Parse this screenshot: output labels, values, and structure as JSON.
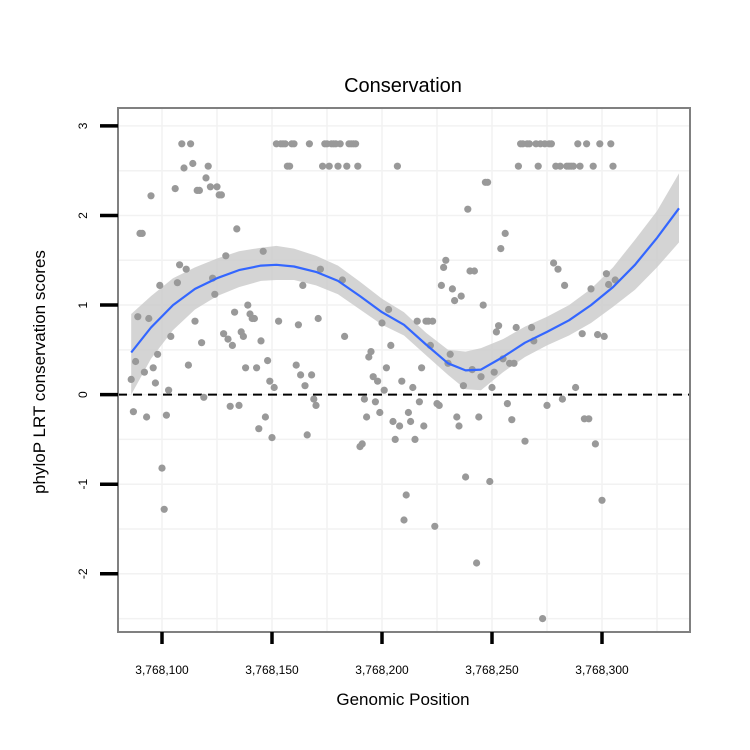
{
  "chart_data": {
    "type": "scatter",
    "title": "Conservation",
    "xlabel": "Genomic Position",
    "ylabel": "phyloP LRT conservation scores",
    "xlim": [
      3768080,
      3768340
    ],
    "ylim": [
      -2.65,
      3.2
    ],
    "x_ticks": [
      3768100,
      3768150,
      3768200,
      3768250,
      3768300
    ],
    "x_tick_labels": [
      "3,768,100",
      "3,768,150",
      "3,768,200",
      "3,768,250",
      "3,768,300"
    ],
    "y_ticks": [
      3,
      2,
      1,
      0,
      -1,
      -2
    ],
    "y_tick_labels": [
      "3",
      "2",
      "1",
      "0",
      "-1",
      "-2"
    ],
    "reference_line": {
      "y": 0,
      "style": "dashed"
    },
    "colors": {
      "points": "#999999",
      "smooth_line": "#3366ff",
      "confidence_band": "#cccccc",
      "panel_border": "#808080",
      "grid": "#f2f2f2"
    },
    "series": [
      {
        "name": "conservation scores",
        "kind": "points",
        "points": [
          [
            3768086,
            0.17
          ],
          [
            3768087,
            -0.19
          ],
          [
            3768088,
            0.37
          ],
          [
            3768089,
            0.87
          ],
          [
            3768090,
            1.8
          ],
          [
            3768091,
            1.8
          ],
          [
            3768092,
            0.25
          ],
          [
            3768093,
            -0.25
          ],
          [
            3768094,
            0.85
          ],
          [
            3768095,
            2.22
          ],
          [
            3768096,
            0.3
          ],
          [
            3768097,
            0.13
          ],
          [
            3768098,
            0.45
          ],
          [
            3768099,
            1.22
          ],
          [
            3768100,
            -0.82
          ],
          [
            3768101,
            -1.28
          ],
          [
            3768102,
            -0.23
          ],
          [
            3768103,
            0.05
          ],
          [
            3768104,
            0.65
          ],
          [
            3768106,
            2.3
          ],
          [
            3768107,
            1.25
          ],
          [
            3768108,
            1.45
          ],
          [
            3768109,
            2.8
          ],
          [
            3768110,
            2.53
          ],
          [
            3768111,
            1.4
          ],
          [
            3768112,
            0.33
          ],
          [
            3768113,
            2.8
          ],
          [
            3768114,
            2.58
          ],
          [
            3768115,
            0.82
          ],
          [
            3768116,
            2.28
          ],
          [
            3768117,
            2.28
          ],
          [
            3768118,
            0.58
          ],
          [
            3768119,
            -0.03
          ],
          [
            3768120,
            2.42
          ],
          [
            3768121,
            2.55
          ],
          [
            3768122,
            2.32
          ],
          [
            3768123,
            1.3
          ],
          [
            3768124,
            1.12
          ],
          [
            3768125,
            2.32
          ],
          [
            3768126,
            2.23
          ],
          [
            3768127,
            2.23
          ],
          [
            3768128,
            0.68
          ],
          [
            3768129,
            1.55
          ],
          [
            3768130,
            0.62
          ],
          [
            3768131,
            -0.13
          ],
          [
            3768132,
            0.55
          ],
          [
            3768133,
            0.92
          ],
          [
            3768134,
            1.85
          ],
          [
            3768135,
            -0.12
          ],
          [
            3768136,
            0.7
          ],
          [
            3768137,
            0.65
          ],
          [
            3768138,
            0.3
          ],
          [
            3768139,
            1.0
          ],
          [
            3768140,
            0.9
          ],
          [
            3768141,
            0.85
          ],
          [
            3768142,
            0.85
          ],
          [
            3768143,
            0.3
          ],
          [
            3768144,
            -0.38
          ],
          [
            3768145,
            0.6
          ],
          [
            3768146,
            1.6
          ],
          [
            3768147,
            -0.25
          ],
          [
            3768148,
            0.38
          ],
          [
            3768149,
            0.15
          ],
          [
            3768150,
            -0.48
          ],
          [
            3768151,
            0.08
          ],
          [
            3768152,
            2.8
          ],
          [
            3768153,
            0.82
          ],
          [
            3768154,
            2.8
          ],
          [
            3768155,
            2.8
          ],
          [
            3768156,
            2.8
          ],
          [
            3768157,
            2.55
          ],
          [
            3768158,
            2.55
          ],
          [
            3768159,
            2.8
          ],
          [
            3768160,
            2.8
          ],
          [
            3768161,
            0.33
          ],
          [
            3768162,
            0.78
          ],
          [
            3768163,
            0.22
          ],
          [
            3768164,
            1.22
          ],
          [
            3768165,
            0.1
          ],
          [
            3768166,
            -0.45
          ],
          [
            3768167,
            2.8
          ],
          [
            3768168,
            0.22
          ],
          [
            3768169,
            -0.05
          ],
          [
            3768170,
            -0.12
          ],
          [
            3768171,
            0.85
          ],
          [
            3768172,
            1.4
          ],
          [
            3768173,
            2.55
          ],
          [
            3768174,
            2.8
          ],
          [
            3768175,
            2.8
          ],
          [
            3768176,
            2.55
          ],
          [
            3768177,
            2.8
          ],
          [
            3768178,
            2.8
          ],
          [
            3768179,
            2.8
          ],
          [
            3768180,
            2.55
          ],
          [
            3768181,
            2.8
          ],
          [
            3768182,
            1.28
          ],
          [
            3768183,
            0.65
          ],
          [
            3768184,
            2.55
          ],
          [
            3768185,
            2.8
          ],
          [
            3768186,
            2.8
          ],
          [
            3768187,
            2.8
          ],
          [
            3768188,
            2.8
          ],
          [
            3768189,
            2.55
          ],
          [
            3768190,
            -0.58
          ],
          [
            3768191,
            -0.55
          ],
          [
            3768192,
            -0.05
          ],
          [
            3768193,
            -0.25
          ],
          [
            3768194,
            0.42
          ],
          [
            3768195,
            0.48
          ],
          [
            3768196,
            0.2
          ],
          [
            3768197,
            -0.08
          ],
          [
            3768198,
            0.15
          ],
          [
            3768199,
            -0.2
          ],
          [
            3768200,
            0.8
          ],
          [
            3768201,
            0.05
          ],
          [
            3768202,
            0.3
          ],
          [
            3768203,
            0.95
          ],
          [
            3768204,
            0.55
          ],
          [
            3768205,
            -0.3
          ],
          [
            3768206,
            -0.5
          ],
          [
            3768207,
            2.55
          ],
          [
            3768208,
            -0.35
          ],
          [
            3768209,
            0.15
          ],
          [
            3768210,
            -1.4
          ],
          [
            3768211,
            -1.12
          ],
          [
            3768212,
            -0.2
          ],
          [
            3768213,
            -0.3
          ],
          [
            3768214,
            0.08
          ],
          [
            3768215,
            -0.5
          ],
          [
            3768216,
            0.82
          ],
          [
            3768217,
            -0.08
          ],
          [
            3768218,
            0.3
          ],
          [
            3768219,
            -0.35
          ],
          [
            3768220,
            0.82
          ],
          [
            3768221,
            0.82
          ],
          [
            3768222,
            0.55
          ],
          [
            3768223,
            0.82
          ],
          [
            3768224,
            -1.47
          ],
          [
            3768225,
            -0.1
          ],
          [
            3768226,
            -0.12
          ],
          [
            3768227,
            1.22
          ],
          [
            3768228,
            1.42
          ],
          [
            3768229,
            1.5
          ],
          [
            3768230,
            0.35
          ],
          [
            3768231,
            0.45
          ],
          [
            3768232,
            1.18
          ],
          [
            3768233,
            1.05
          ],
          [
            3768234,
            -0.25
          ],
          [
            3768235,
            -0.35
          ],
          [
            3768236,
            1.1
          ],
          [
            3768237,
            0.1
          ],
          [
            3768238,
            -0.92
          ],
          [
            3768239,
            2.07
          ],
          [
            3768240,
            1.38
          ],
          [
            3768241,
            0.28
          ],
          [
            3768242,
            1.38
          ],
          [
            3768243,
            -1.88
          ],
          [
            3768244,
            -0.25
          ],
          [
            3768245,
            0.2
          ],
          [
            3768246,
            1.0
          ],
          [
            3768247,
            2.37
          ],
          [
            3768248,
            2.37
          ],
          [
            3768249,
            -0.97
          ],
          [
            3768250,
            0.08
          ],
          [
            3768251,
            0.25
          ],
          [
            3768252,
            0.7
          ],
          [
            3768253,
            0.77
          ],
          [
            3768254,
            1.63
          ],
          [
            3768255,
            0.4
          ],
          [
            3768256,
            1.8
          ],
          [
            3768257,
            -0.1
          ],
          [
            3768258,
            0.35
          ],
          [
            3768259,
            -0.28
          ],
          [
            3768260,
            0.35
          ],
          [
            3768261,
            0.75
          ],
          [
            3768262,
            2.55
          ],
          [
            3768263,
            2.8
          ],
          [
            3768264,
            2.8
          ],
          [
            3768265,
            -0.52
          ],
          [
            3768266,
            2.8
          ],
          [
            3768267,
            2.8
          ],
          [
            3768268,
            0.75
          ],
          [
            3768269,
            0.6
          ],
          [
            3768270,
            2.8
          ],
          [
            3768271,
            2.55
          ],
          [
            3768272,
            2.8
          ],
          [
            3768273,
            -2.5
          ],
          [
            3768274,
            2.8
          ],
          [
            3768275,
            -0.12
          ],
          [
            3768276,
            2.8
          ],
          [
            3768277,
            2.8
          ],
          [
            3768278,
            1.47
          ],
          [
            3768279,
            2.55
          ],
          [
            3768280,
            1.4
          ],
          [
            3768281,
            2.55
          ],
          [
            3768282,
            -0.05
          ],
          [
            3768283,
            1.22
          ],
          [
            3768284,
            2.55
          ],
          [
            3768285,
            2.55
          ],
          [
            3768286,
            2.55
          ],
          [
            3768287,
            2.55
          ],
          [
            3768288,
            0.08
          ],
          [
            3768289,
            2.8
          ],
          [
            3768290,
            2.55
          ],
          [
            3768291,
            0.68
          ],
          [
            3768292,
            -0.27
          ],
          [
            3768293,
            2.8
          ],
          [
            3768294,
            -0.27
          ],
          [
            3768295,
            1.18
          ],
          [
            3768296,
            2.55
          ],
          [
            3768297,
            -0.55
          ],
          [
            3768298,
            0.67
          ],
          [
            3768299,
            2.8
          ],
          [
            3768300,
            -1.18
          ],
          [
            3768301,
            0.65
          ],
          [
            3768302,
            1.35
          ],
          [
            3768303,
            1.23
          ],
          [
            3768304,
            2.8
          ],
          [
            3768305,
            2.55
          ],
          [
            3768306,
            1.28
          ]
        ]
      },
      {
        "name": "loess fit",
        "kind": "smooth",
        "x": [
          3768086,
          3768095,
          3768105,
          3768115,
          3768125,
          3768135,
          3768145,
          3768152,
          3768160,
          3768170,
          3768180,
          3768190,
          3768200,
          3768210,
          3768220,
          3768230,
          3768238,
          3768245,
          3768255,
          3768265,
          3768275,
          3768285,
          3768295,
          3768305,
          3768315,
          3768325,
          3768335
        ],
        "y": [
          0.47,
          0.75,
          1.0,
          1.18,
          1.3,
          1.39,
          1.44,
          1.45,
          1.43,
          1.37,
          1.27,
          1.1,
          0.92,
          0.78,
          0.56,
          0.35,
          0.27,
          0.28,
          0.42,
          0.58,
          0.7,
          0.83,
          1.0,
          1.2,
          1.45,
          1.75,
          2.08
        ],
        "lower": [
          0.0,
          0.4,
          0.72,
          0.95,
          1.1,
          1.2,
          1.27,
          1.28,
          1.28,
          1.22,
          1.12,
          0.95,
          0.78,
          0.66,
          0.44,
          0.22,
          0.06,
          0.05,
          0.25,
          0.42,
          0.55,
          0.66,
          0.8,
          0.98,
          1.17,
          1.42,
          1.7
        ],
        "upper": [
          0.9,
          1.1,
          1.3,
          1.42,
          1.52,
          1.6,
          1.64,
          1.66,
          1.63,
          1.55,
          1.44,
          1.26,
          1.07,
          0.92,
          0.69,
          0.5,
          0.48,
          0.52,
          0.62,
          0.76,
          0.87,
          1.0,
          1.18,
          1.42,
          1.73,
          2.05,
          2.47
        ]
      }
    ]
  }
}
